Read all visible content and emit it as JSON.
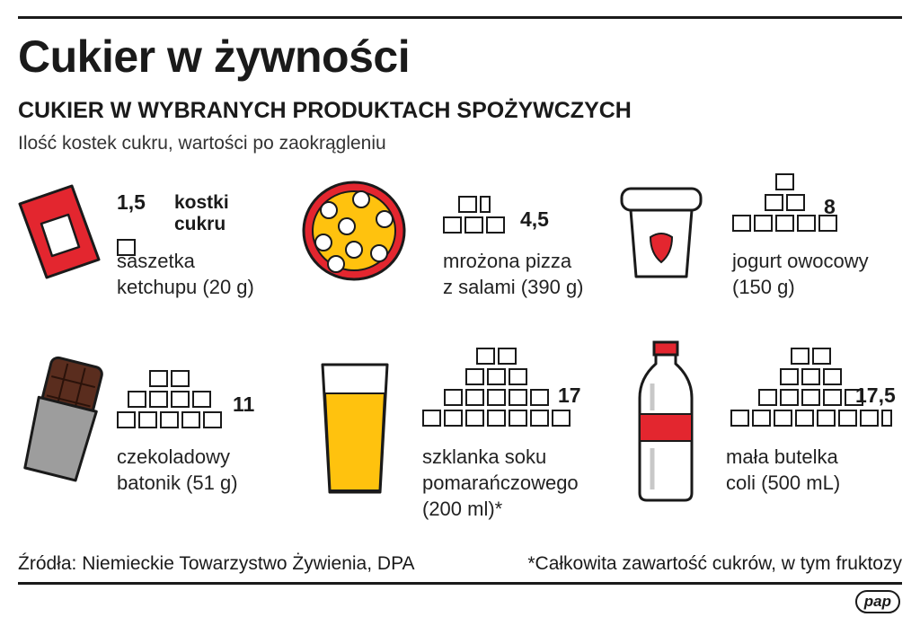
{
  "title": "Cukier w żywności",
  "subtitle": "CUKIER W WYBRANYCH PRODUKTACH SPOŻYWCZYCH",
  "note": "Ilość kostek cukru, wartości po zaokrągleniu",
  "unit_line1": "kostki",
  "unit_line2": "cukru",
  "products": [
    {
      "value": "1,5",
      "cubes": 1.5,
      "label1": "saszetka",
      "label2": "ketchupu (20 g)",
      "label3": "",
      "icon": "ketchup-sachet-icon"
    },
    {
      "value": "4,5",
      "cubes": 4.5,
      "label1": "mrożona pizza",
      "label2": "z salami (390 g)",
      "label3": "",
      "icon": "pizza-icon"
    },
    {
      "value": "8",
      "cubes": 8,
      "label1": "jogurt owocowy",
      "label2": "(150 g)",
      "label3": "",
      "icon": "yogurt-cup-icon"
    },
    {
      "value": "11",
      "cubes": 11,
      "label1": "czekoladowy",
      "label2": "batonik (51 g)",
      "label3": "",
      "icon": "chocolate-bar-icon"
    },
    {
      "value": "17",
      "cubes": 17,
      "label1": "szklanka soku",
      "label2": "pomarańczowego",
      "label3": "(200 ml)*",
      "icon": "juice-glass-icon"
    },
    {
      "value": "17,5",
      "cubes": 17.5,
      "label1": "mała butelka",
      "label2": "coli (500 mL)",
      "label3": "",
      "icon": "cola-bottle-icon"
    }
  ],
  "source": "Źródła: Niemieckie Towarzystwo Żywienia, DPA",
  "footnote": "*Całkowita zawartość cukrów, w tym fruktozy",
  "logo": "pap",
  "colors": {
    "red": "#e3262f",
    "yellow": "#ffc20e",
    "gray": "#9d9d9d",
    "brown": "#5a2d1e",
    "text": "#1a1a1a"
  }
}
